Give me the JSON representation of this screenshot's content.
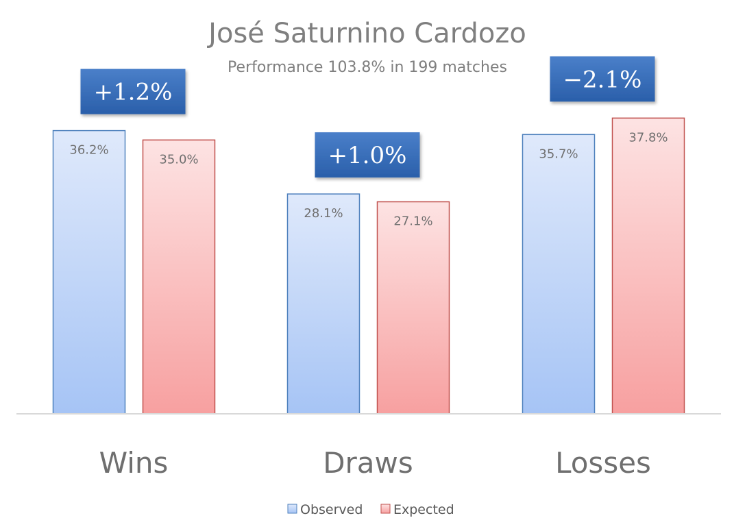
{
  "chart_data": {
    "type": "bar",
    "title": "José Saturnino Cardozo",
    "subtitle": "Performance 103.8% in 199 matches",
    "categories": [
      "Wins",
      "Draws",
      "Losses"
    ],
    "series": [
      {
        "name": "Observed",
        "values": [
          36.2,
          28.1,
          35.7
        ],
        "labels": [
          "36.2%",
          "28.1%",
          "35.7%"
        ]
      },
      {
        "name": "Expected",
        "values": [
          35.0,
          27.1,
          37.8
        ],
        "labels": [
          "35.0%",
          "27.1%",
          "37.8%"
        ]
      }
    ],
    "differences": [
      "+1.2%",
      "+1.0%",
      "−2.1%"
    ],
    "ylim": [
      0,
      40
    ],
    "grid": false,
    "legend_position": "bottom",
    "colors": {
      "observed_fill_top": "#dfe9fb",
      "observed_fill_bottom": "#a6c4f5",
      "observed_stroke": "#4f81bd",
      "expected_fill_top": "#fde3e3",
      "expected_fill_bottom": "#f7a0a0",
      "expected_stroke": "#c0504d",
      "diff_box_top": "#4a7fc9",
      "diff_box_bottom": "#2a5faa",
      "axis": "#d9d9d9"
    }
  }
}
